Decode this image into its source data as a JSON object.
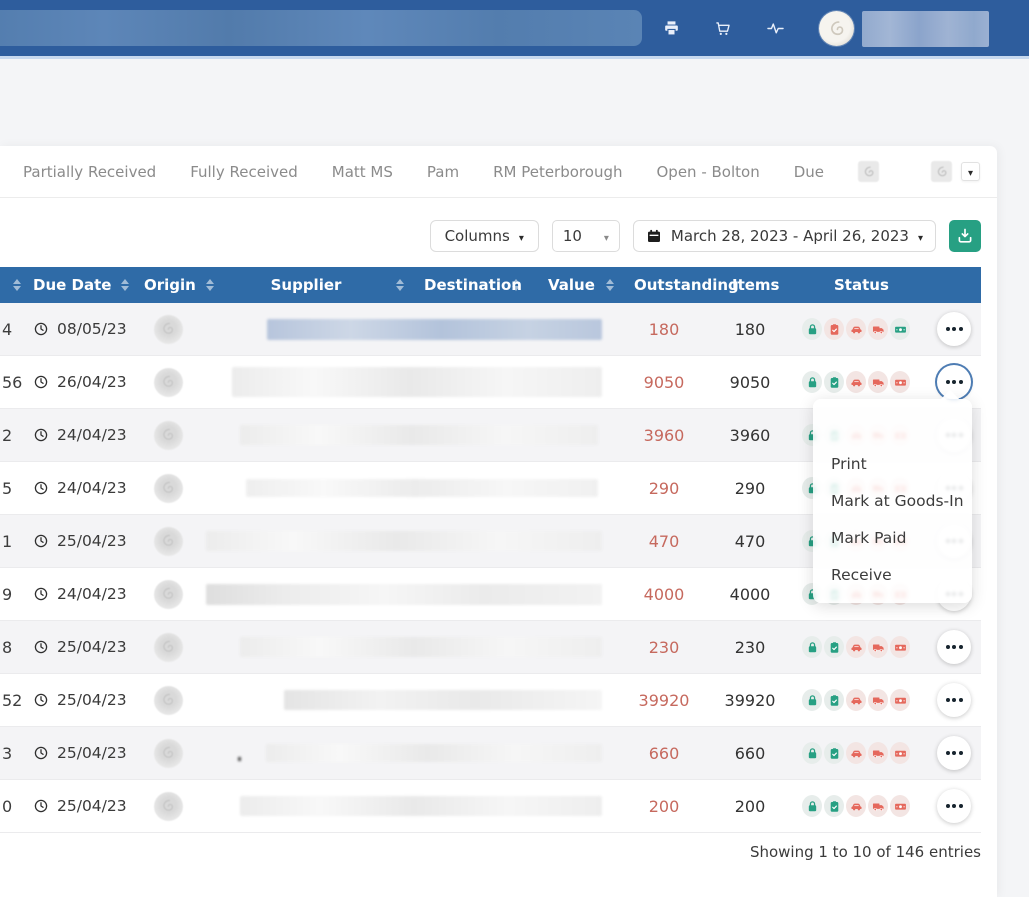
{
  "topbar": {
    "icons": [
      "printer-icon",
      "cart-icon",
      "activity-icon"
    ],
    "user": {
      "avatar": "company-logo-avatar",
      "name_redacted": true
    }
  },
  "tabs": {
    "items": [
      "Partially Received",
      "Fully Received",
      "Matt MS",
      "Pam",
      "RM Peterborough",
      "Open - Bolton",
      "Due"
    ],
    "icon_tabs": [
      "logo-tab-icon",
      "logo-tab-icon"
    ]
  },
  "toolbar": {
    "columns_label": "Columns",
    "page_size": "10",
    "date_range": "March 28, 2023 - April 26, 2023",
    "export_icon": "download-icon"
  },
  "table": {
    "headers": {
      "po": "",
      "due_date": "Due Date",
      "origin": "Origin",
      "supplier": "Supplier",
      "destination": "Destination",
      "value": "Value",
      "outstanding": "Outstanding",
      "items": "Items",
      "status": "Status"
    },
    "status_icon_order": [
      "lock",
      "clipboard-check",
      "van",
      "truck",
      "cash"
    ],
    "rows": [
      {
        "po": "4",
        "due_date": "08/05/23",
        "outstanding": "180",
        "items": "180",
        "status": [
          "success",
          "danger",
          "danger",
          "danger",
          "success"
        ],
        "active": false
      },
      {
        "po": "56",
        "due_date": "26/04/23",
        "outstanding": "9050",
        "items": "9050",
        "status": [
          "success",
          "success",
          "danger",
          "danger",
          "danger"
        ],
        "active": true
      },
      {
        "po": "2",
        "due_date": "24/04/23",
        "outstanding": "3960",
        "items": "3960",
        "status": [
          "success",
          "success",
          "danger",
          "danger",
          "danger"
        ],
        "active": false
      },
      {
        "po": "5",
        "due_date": "24/04/23",
        "outstanding": "290",
        "items": "290",
        "status": [
          "success",
          "success",
          "danger",
          "danger",
          "danger"
        ],
        "active": false
      },
      {
        "po": "1",
        "due_date": "25/04/23",
        "outstanding": "470",
        "items": "470",
        "status": [
          "success",
          "success",
          "danger",
          "danger",
          "danger"
        ],
        "active": false
      },
      {
        "po": "9",
        "due_date": "24/04/23",
        "outstanding": "4000",
        "items": "4000",
        "status": [
          "success",
          "success",
          "danger",
          "danger",
          "danger"
        ],
        "active": false
      },
      {
        "po": "8",
        "due_date": "25/04/23",
        "outstanding": "230",
        "items": "230",
        "status": [
          "success",
          "success",
          "danger",
          "danger",
          "danger"
        ],
        "active": false
      },
      {
        "po": "52",
        "due_date": "25/04/23",
        "outstanding": "39920",
        "items": "39920",
        "status": [
          "success",
          "success",
          "danger",
          "danger",
          "danger"
        ],
        "active": false
      },
      {
        "po": "3",
        "due_date": "25/04/23",
        "outstanding": "660",
        "items": "660",
        "status": [
          "success",
          "success",
          "danger",
          "danger",
          "danger"
        ],
        "active": false
      },
      {
        "po": "0",
        "due_date": "25/04/23",
        "outstanding": "200",
        "items": "200",
        "status": [
          "success",
          "success",
          "danger",
          "danger",
          "danger"
        ],
        "active": false
      }
    ]
  },
  "action_menu": {
    "items": [
      "Print",
      "Mark at Goods-In",
      "Mark Paid",
      "Receive"
    ]
  },
  "footer": {
    "summary": "Showing 1 to 10 of 146 entries"
  },
  "colors": {
    "topbar_blue": "#2e5d9d",
    "header_blue": "#2f6ba7",
    "success_green": "#27a083",
    "danger_red": "#e5685c",
    "outstanding_text": "#c6695e",
    "export_green": "#27a083"
  }
}
